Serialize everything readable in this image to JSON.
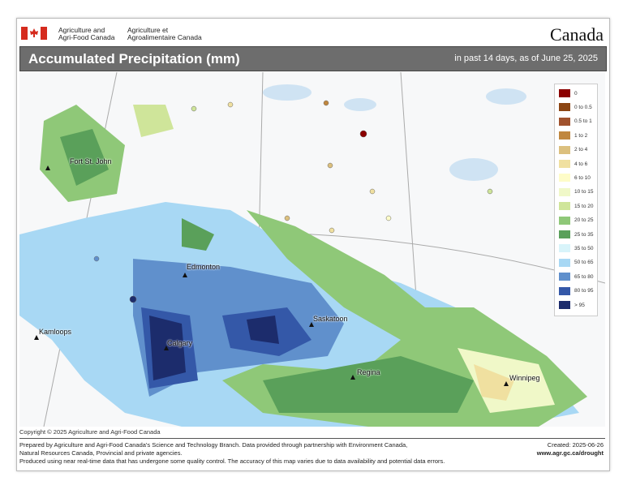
{
  "header": {
    "dept_en_line1": "Agriculture and",
    "dept_en_line2": "Agri-Food Canada",
    "dept_fr_line1": "Agriculture et",
    "dept_fr_line2": "Agroalimentaire Canada",
    "wordmark": "Canada",
    "title": "Accumulated Precipitation (mm)",
    "subtitle": "in past 14 days, as of June 25, 2025"
  },
  "legend": [
    {
      "label": "0",
      "color": "#8b0000"
    },
    {
      "label": "0 to 0.5",
      "color": "#8b4513"
    },
    {
      "label": "0.5 to 1",
      "color": "#a0522d"
    },
    {
      "label": "1 to 2",
      "color": "#c0873f"
    },
    {
      "label": "2 to 4",
      "color": "#dcc07e"
    },
    {
      "label": "4 to 6",
      "color": "#f0e0a0"
    },
    {
      "label": "6 to 10",
      "color": "#fefcc8"
    },
    {
      "label": "10 to 15",
      "color": "#f0f8c8"
    },
    {
      "label": "15 to 20",
      "color": "#cfe59a"
    },
    {
      "label": "20 to 25",
      "color": "#8fc878"
    },
    {
      "label": "25 to 35",
      "color": "#5aa05a"
    },
    {
      "label": "35 to 50",
      "color": "#d8f4fa"
    },
    {
      "label": "50 to 65",
      "color": "#a8d8f4"
    },
    {
      "label": "65 to 80",
      "color": "#6090cc"
    },
    {
      "label": "80 to 95",
      "color": "#3458a8"
    },
    {
      "label": "> 95",
      "color": "#1c2c6c"
    }
  ],
  "cities": [
    {
      "name": "Fort St. John"
    },
    {
      "name": "Edmonton"
    },
    {
      "name": "Kamloops"
    },
    {
      "name": "Calgary"
    },
    {
      "name": "Saskatoon"
    },
    {
      "name": "Regina"
    },
    {
      "name": "Winnipeg"
    }
  ],
  "footer": {
    "copyright": "Copyright © 2025 Agriculture and Agri-Food Canada",
    "line1": "Prepared by Agriculture and Agri-Food Canada's Science and Technology Branch. Data provided through partnership with Environment Canada,",
    "line2": "Natural Resources Canada, Provincial and private agencies.",
    "line3": "Produced using near real-time data that has undergone some quality control. The accuracy of this map varies due to data availability and potential data errors.",
    "created": "Created: 2025-06-26",
    "url": "www.agr.gc.ca/drought"
  }
}
